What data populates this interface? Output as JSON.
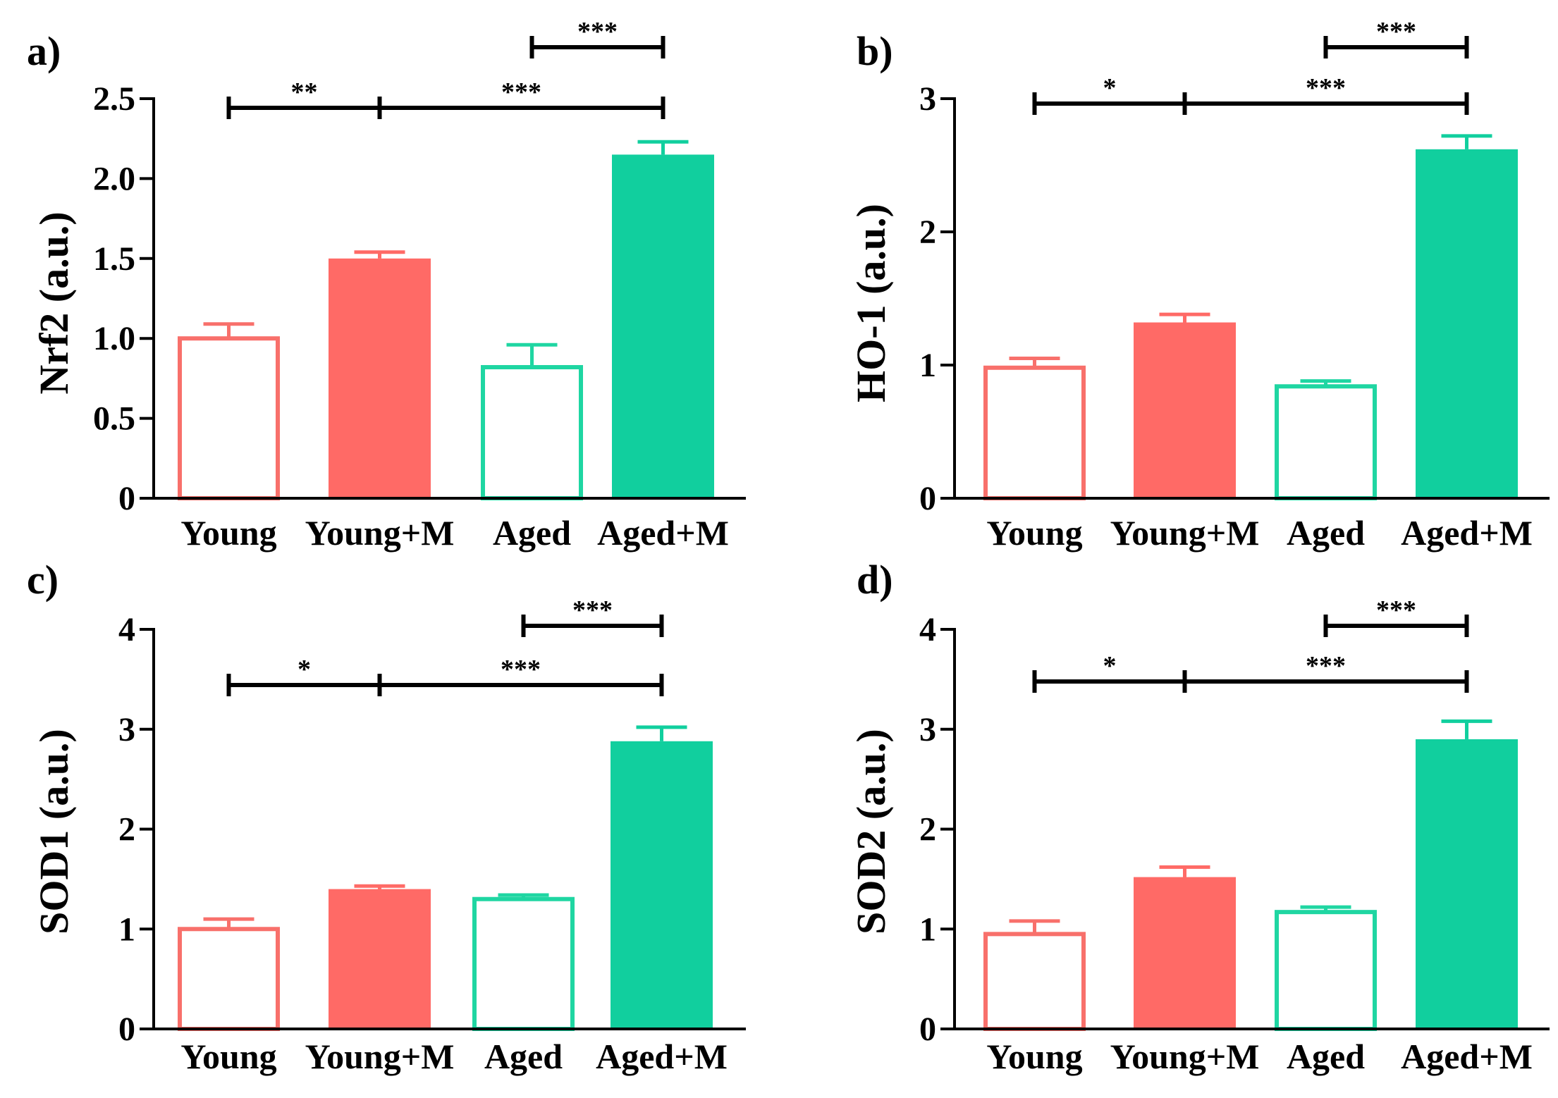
{
  "colors": {
    "young": "#f8706b",
    "young_m": "#ff6a66",
    "aged": "#1fd6a2",
    "aged_m": "#11cf9e",
    "axis": "#000000",
    "background": "#ffffff"
  },
  "chart_data": [
    {
      "type": "bar",
      "panel": "a)",
      "ylabel": "Nrf2 (a.u.)",
      "xlabel": "",
      "categories": [
        "Young",
        "Young+M",
        "Aged",
        "Aged+M"
      ],
      "values": [
        1.0,
        1.5,
        0.82,
        2.15
      ],
      "errors": [
        0.09,
        0.04,
        0.14,
        0.08
      ],
      "fill": [
        "open",
        "filled",
        "open",
        "filled"
      ],
      "ylim": [
        0,
        2.5
      ],
      "yticks": [
        0,
        0.5,
        1.0,
        1.5,
        2.0,
        2.5
      ],
      "ytick_labels": [
        "0",
        "0.5",
        "1.0",
        "1.5",
        "2.0",
        "2.5"
      ],
      "significance": [
        {
          "from": 2,
          "to": 3,
          "label": "***",
          "level": 0
        },
        {
          "from": 0,
          "to": 1,
          "label": "**",
          "level": 1
        },
        {
          "from": 1,
          "to": 3,
          "label": "***",
          "level": 1
        }
      ]
    },
    {
      "type": "bar",
      "panel": "b)",
      "ylabel": "HO-1 (a.u.)",
      "xlabel": "",
      "categories": [
        "Young",
        "Young+M",
        "Aged",
        "Aged+M"
      ],
      "values": [
        0.98,
        1.32,
        0.84,
        2.62
      ],
      "errors": [
        0.07,
        0.06,
        0.04,
        0.1
      ],
      "fill": [
        "open",
        "filled",
        "open",
        "filled"
      ],
      "ylim": [
        0,
        3
      ],
      "yticks": [
        0,
        1,
        2,
        3
      ],
      "ytick_labels": [
        "0",
        "1",
        "2",
        "3"
      ],
      "significance": [
        {
          "from": 2,
          "to": 3,
          "label": "***",
          "level": 0
        },
        {
          "from": 0,
          "to": 1,
          "label": "*",
          "level": 1
        },
        {
          "from": 1,
          "to": 3,
          "label": "***",
          "level": 1
        }
      ]
    },
    {
      "type": "bar",
      "panel": "c)",
      "ylabel": "SOD1 (a.u.)",
      "xlabel": "",
      "categories": [
        "Young",
        "Young+M",
        "Aged",
        "Aged+M"
      ],
      "values": [
        1.0,
        1.4,
        1.3,
        2.88
      ],
      "errors": [
        0.1,
        0.03,
        0.04,
        0.14
      ],
      "fill": [
        "open",
        "filled",
        "open",
        "filled"
      ],
      "ylim": [
        0,
        4
      ],
      "yticks": [
        0,
        1,
        2,
        3,
        4
      ],
      "ytick_labels": [
        "0",
        "1",
        "2",
        "3",
        "4"
      ],
      "significance": [
        {
          "from": 2,
          "to": 3,
          "label": "***",
          "level": 0
        },
        {
          "from": 0,
          "to": 1,
          "label": "*",
          "level": 1
        },
        {
          "from": 1,
          "to": 3,
          "label": "***",
          "level": 1
        }
      ]
    },
    {
      "type": "bar",
      "panel": "d)",
      "ylabel": "SOD2 (a.u.)",
      "xlabel": "",
      "categories": [
        "Young",
        "Young+M",
        "Aged",
        "Aged+M"
      ],
      "values": [
        0.95,
        1.52,
        1.17,
        2.9
      ],
      "errors": [
        0.13,
        0.1,
        0.05,
        0.18
      ],
      "fill": [
        "open",
        "filled",
        "open",
        "filled"
      ],
      "ylim": [
        0,
        4
      ],
      "yticks": [
        0,
        1,
        2,
        3,
        4
      ],
      "ytick_labels": [
        "0",
        "1",
        "2",
        "3",
        "4"
      ],
      "significance": [
        {
          "from": 2,
          "to": 3,
          "label": "***",
          "level": 0
        },
        {
          "from": 0,
          "to": 1,
          "label": "*",
          "level": 1
        },
        {
          "from": 1,
          "to": 3,
          "label": "***",
          "level": 1
        }
      ]
    }
  ]
}
